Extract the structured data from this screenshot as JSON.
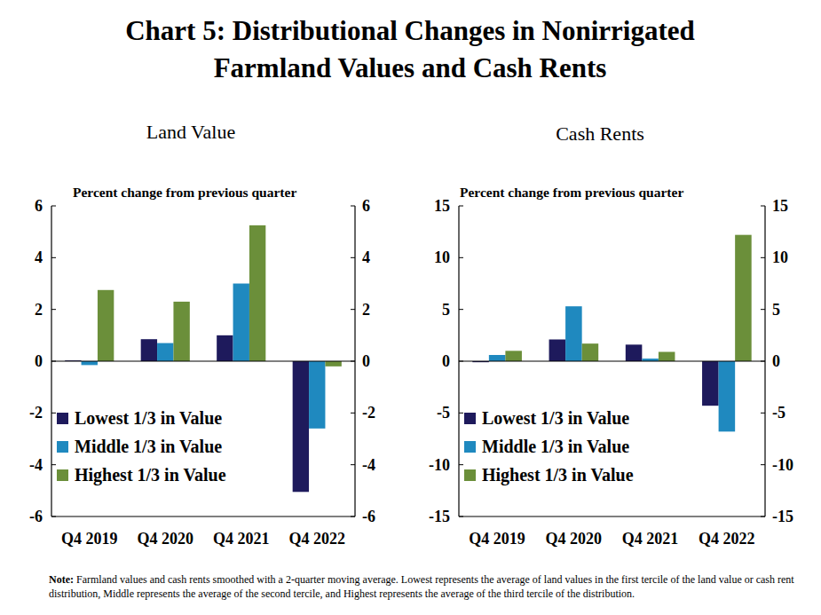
{
  "title": "Chart 5: Distributional Changes in Nonirrigated Farmland Values and Cash Rents",
  "note_label": "Note:",
  "note": "Farmland values and cash rents smoothed with a 2-quarter moving average. Lowest represents the average of land values in the first tercile of the land value or cash rent distribution, Middle represents the average of the second tercile, and Highest represents the average of the third tercile of the distribution.",
  "chart_data": [
    {
      "type": "bar",
      "title": "Land Value",
      "y_label": "Percent change from previous quarter",
      "categories": [
        "Q4 2019",
        "Q4 2020",
        "Q4 2021",
        "Q4 2022"
      ],
      "series": [
        {
          "name": "Lowest 1/3 in Value",
          "color": "#1e1a5c",
          "values": [
            0.03,
            0.85,
            1.0,
            -5.05
          ]
        },
        {
          "name": "Middle 1/3 in Value",
          "color": "#1f89bf",
          "values": [
            -0.15,
            0.7,
            3.0,
            -2.6
          ]
        },
        {
          "name": "Highest 1/3 in Value",
          "color": "#6b8f3a",
          "values": [
            2.75,
            2.3,
            5.25,
            -0.2
          ]
        }
      ],
      "ylim": [
        -6,
        6
      ],
      "yticks": [
        -6,
        -4,
        -2,
        0,
        2,
        4,
        6
      ],
      "y2lim": [
        -6,
        6
      ],
      "y2ticks": [
        -6,
        -4,
        -2,
        0,
        2,
        4,
        6
      ],
      "grid": false,
      "legend": "lower-left"
    },
    {
      "type": "bar",
      "title": "Cash Rents",
      "y_label": "Percent change from previous quarter",
      "categories": [
        "Q4 2019",
        "Q4 2020",
        "Q4 2021",
        "Q4 2022"
      ],
      "series": [
        {
          "name": "Lowest 1/3 in Value",
          "color": "#1e1a5c",
          "values": [
            -0.1,
            2.1,
            1.6,
            -4.3
          ]
        },
        {
          "name": "Middle 1/3 in Value",
          "color": "#1f89bf",
          "values": [
            0.6,
            5.3,
            0.25,
            -6.8
          ]
        },
        {
          "name": "Highest 1/3 in Value",
          "color": "#6b8f3a",
          "values": [
            1.0,
            1.7,
            0.9,
            12.2
          ]
        }
      ],
      "ylim": [
        -15,
        15
      ],
      "yticks": [
        -15,
        -10,
        -5,
        0,
        5,
        10,
        15
      ],
      "y2lim": [
        -15,
        15
      ],
      "y2ticks": [
        -15,
        -10,
        -5,
        0,
        5,
        10,
        15
      ],
      "grid": false,
      "legend": "lower-left"
    }
  ]
}
